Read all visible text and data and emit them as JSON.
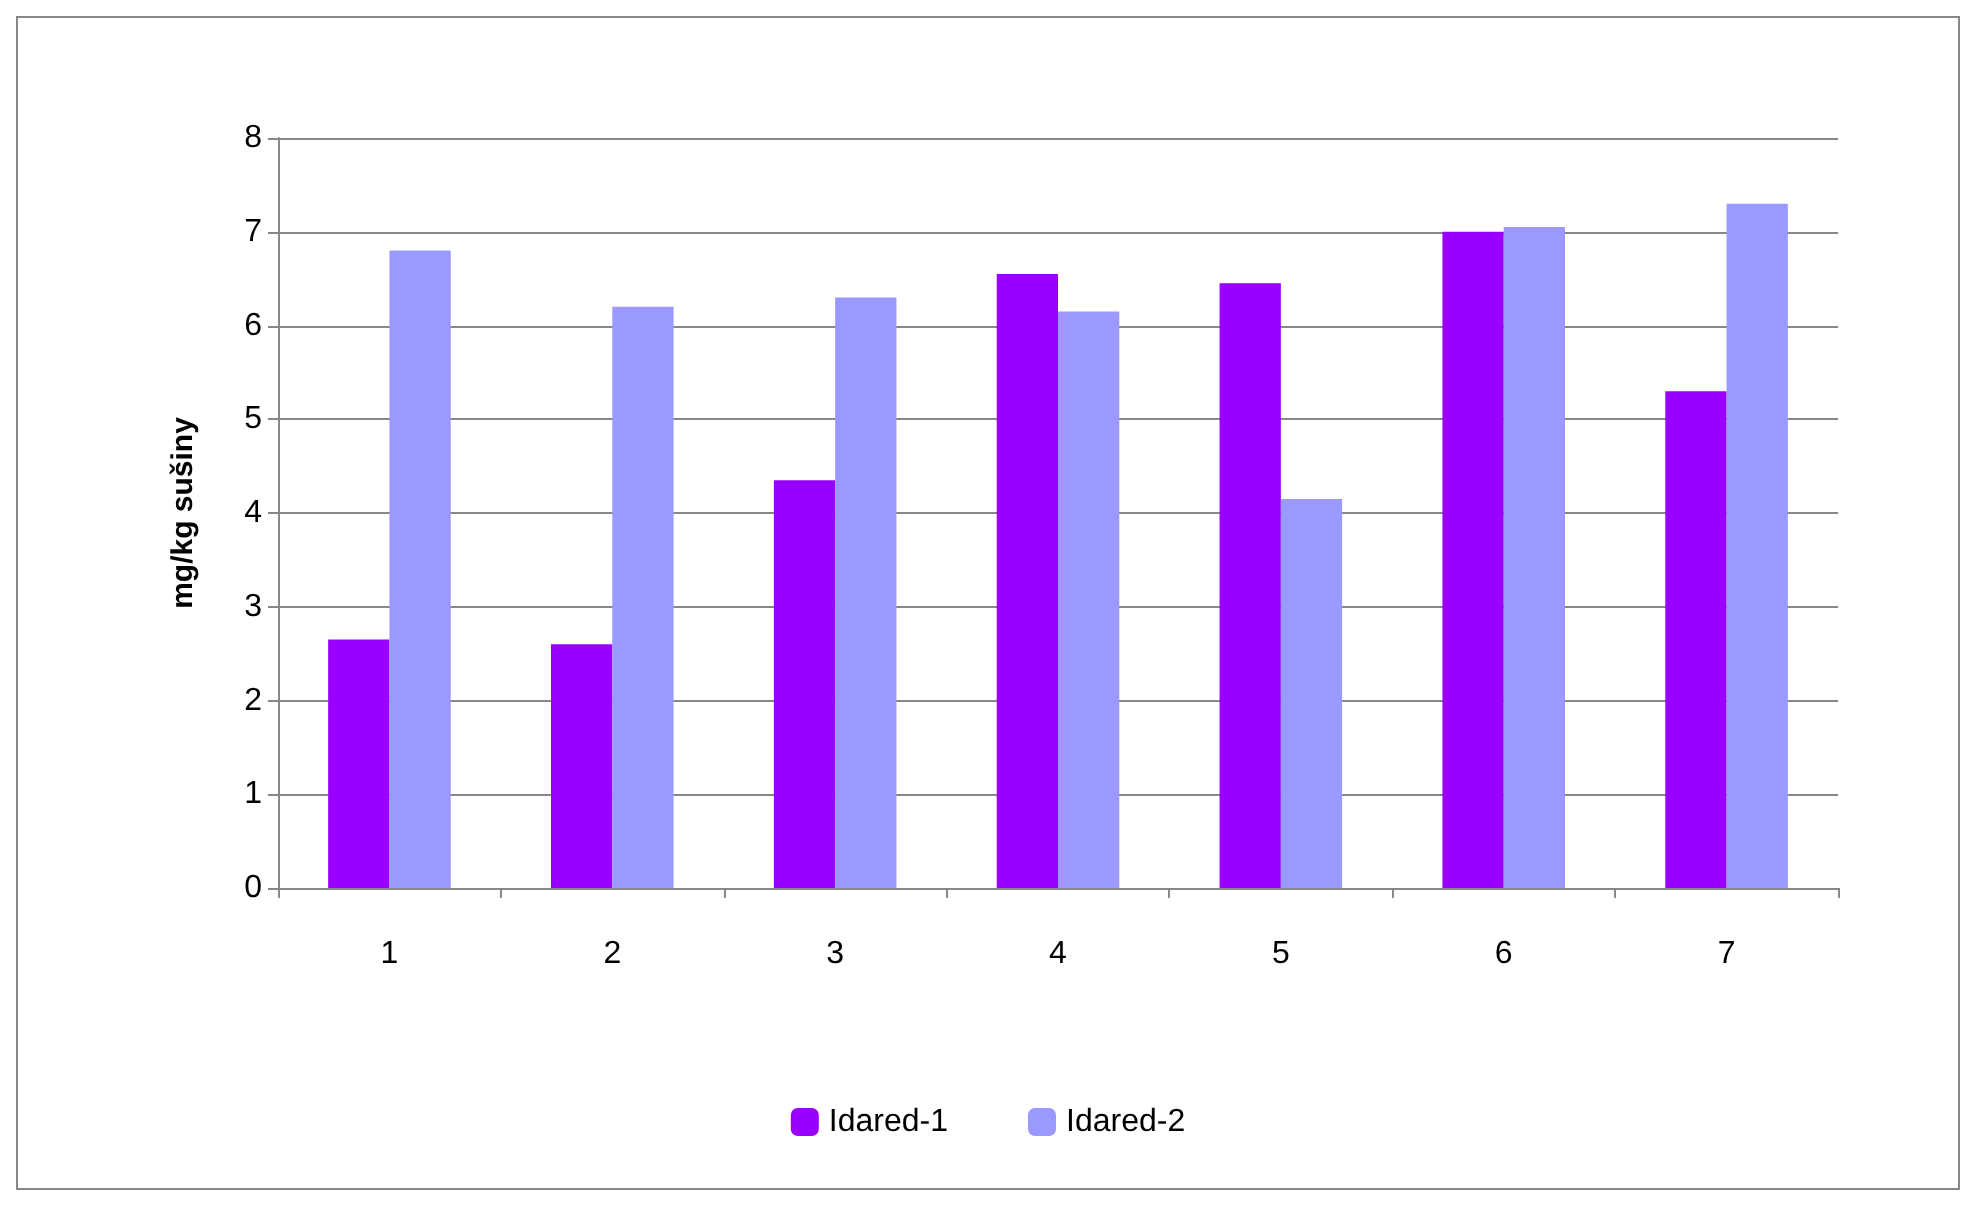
{
  "chart_data": {
    "type": "bar",
    "ylabel": "mg/kg sušiny",
    "categories": [
      "1",
      "2",
      "3",
      "4",
      "5",
      "6",
      "7"
    ],
    "series": [
      {
        "name": "Idared-1",
        "color": "#9900ff",
        "values": [
          2.65,
          2.6,
          4.35,
          6.55,
          6.45,
          7.0,
          5.3
        ]
      },
      {
        "name": "Idared-2",
        "color": "#9999ff",
        "values": [
          6.8,
          6.2,
          6.3,
          6.15,
          4.15,
          7.05,
          7.3
        ]
      }
    ],
    "ylim": [
      0,
      8
    ],
    "yticks": [
      0,
      1,
      2,
      3,
      4,
      5,
      6,
      7,
      8
    ],
    "grid": "y",
    "legend": "bottom"
  }
}
